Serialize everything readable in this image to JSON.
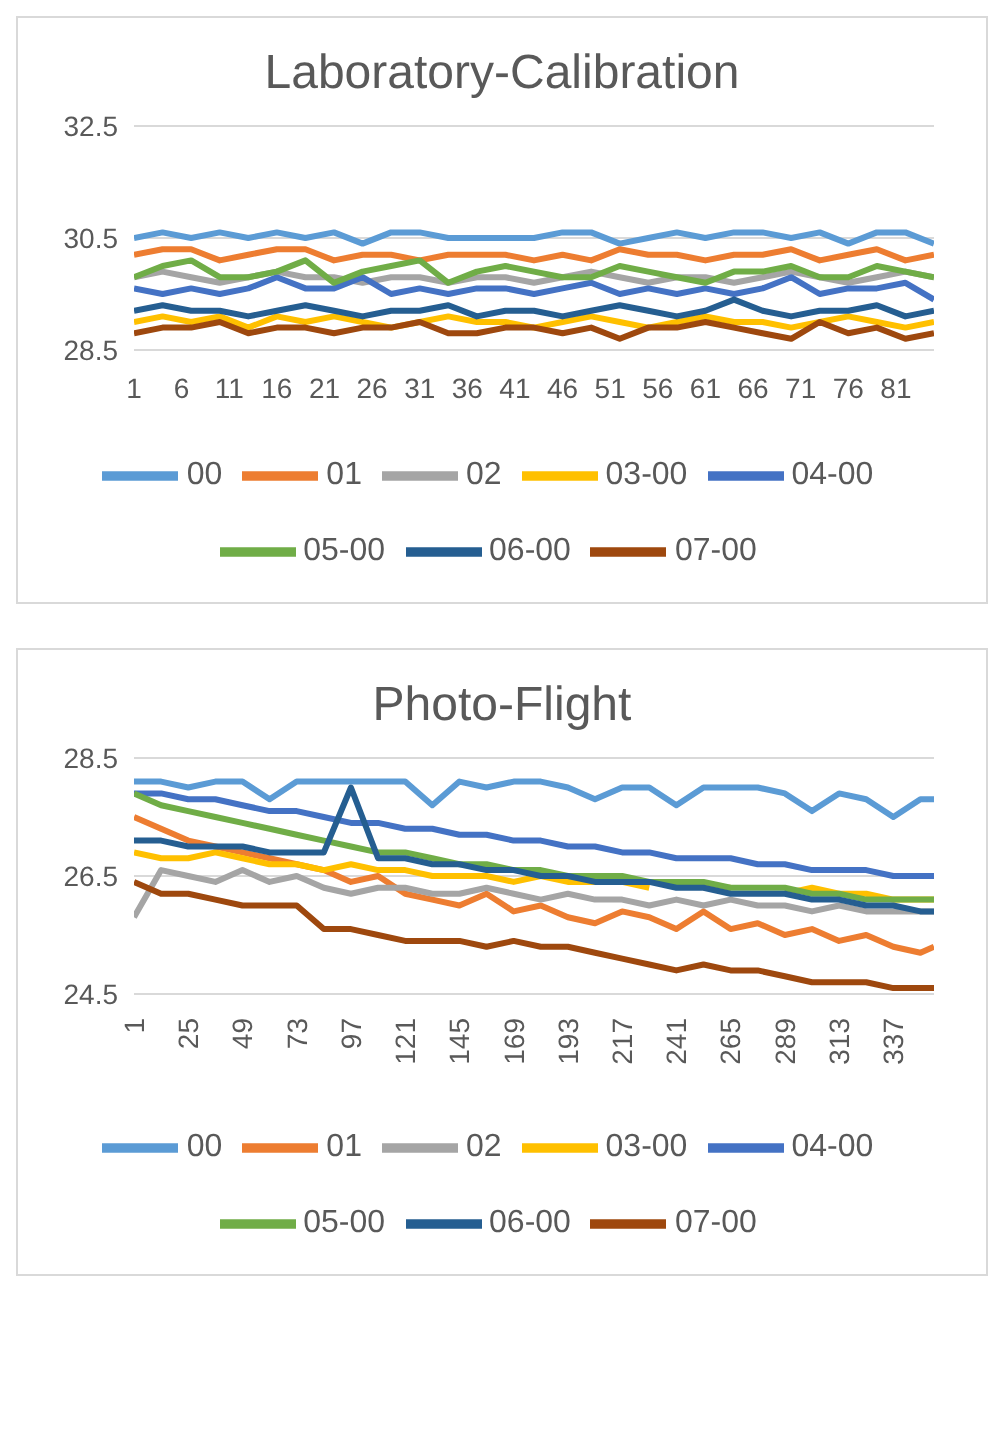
{
  "chart_data": [
    {
      "type": "line",
      "title": "Laboratory-Calibration",
      "x": [
        1,
        4,
        7,
        10,
        13,
        16,
        19,
        22,
        25,
        28,
        31,
        34,
        37,
        40,
        43,
        46,
        49,
        52,
        55,
        58,
        61,
        64,
        67,
        70,
        73,
        76,
        79,
        82,
        85
      ],
      "xlim": [
        1,
        85
      ],
      "xticks": [
        1,
        6,
        11,
        16,
        21,
        26,
        31,
        36,
        41,
        46,
        51,
        56,
        61,
        66,
        71,
        76,
        81
      ],
      "ylim": [
        28.5,
        32.5
      ],
      "yticks": [
        28.5,
        30.5,
        32.5
      ],
      "grid": "y",
      "legend": "bottom",
      "series": [
        {
          "name": "00",
          "color": "#5b9bd5",
          "values": [
            30.5,
            30.6,
            30.5,
            30.6,
            30.5,
            30.6,
            30.5,
            30.6,
            30.4,
            30.6,
            30.6,
            30.5,
            30.5,
            30.5,
            30.5,
            30.6,
            30.6,
            30.4,
            30.5,
            30.6,
            30.5,
            30.6,
            30.6,
            30.5,
            30.6,
            30.4,
            30.6,
            30.6,
            30.4
          ]
        },
        {
          "name": "01",
          "color": "#ed7d31",
          "values": [
            30.2,
            30.3,
            30.3,
            30.1,
            30.2,
            30.3,
            30.3,
            30.1,
            30.2,
            30.2,
            30.1,
            30.2,
            30.2,
            30.2,
            30.1,
            30.2,
            30.1,
            30.3,
            30.2,
            30.2,
            30.1,
            30.2,
            30.2,
            30.3,
            30.1,
            30.2,
            30.3,
            30.1,
            30.2
          ]
        },
        {
          "name": "02",
          "color": "#a5a5a5",
          "values": [
            29.8,
            29.9,
            29.8,
            29.7,
            29.8,
            29.9,
            29.8,
            29.8,
            29.7,
            29.8,
            29.8,
            29.7,
            29.8,
            29.8,
            29.7,
            29.8,
            29.9,
            29.8,
            29.7,
            29.8,
            29.8,
            29.7,
            29.8,
            29.9,
            29.8,
            29.7,
            29.8,
            29.9,
            29.8
          ]
        },
        {
          "name": "03-00",
          "color": "#ffc000",
          "values": [
            29.0,
            29.1,
            29.0,
            29.1,
            28.9,
            29.1,
            29.0,
            29.1,
            29.0,
            28.9,
            29.0,
            29.1,
            29.0,
            29.0,
            28.9,
            29.0,
            29.1,
            29.0,
            28.9,
            29.0,
            29.1,
            29.0,
            29.0,
            28.9,
            29.0,
            29.1,
            29.0,
            28.9,
            29.0
          ]
        },
        {
          "name": "04-00",
          "color": "#4472c4",
          "values": [
            29.6,
            29.5,
            29.6,
            29.5,
            29.6,
            29.8,
            29.6,
            29.6,
            29.8,
            29.5,
            29.6,
            29.5,
            29.6,
            29.6,
            29.5,
            29.6,
            29.7,
            29.5,
            29.6,
            29.5,
            29.6,
            29.5,
            29.6,
            29.8,
            29.5,
            29.6,
            29.6,
            29.7,
            29.4
          ]
        },
        {
          "name": "05-00",
          "color": "#70ad47",
          "values": [
            29.8,
            30.0,
            30.1,
            29.8,
            29.8,
            29.9,
            30.1,
            29.7,
            29.9,
            30.0,
            30.1,
            29.7,
            29.9,
            30.0,
            29.9,
            29.8,
            29.8,
            30.0,
            29.9,
            29.8,
            29.7,
            29.9,
            29.9,
            30.0,
            29.8,
            29.8,
            30.0,
            29.9,
            29.8
          ]
        },
        {
          "name": "06-00",
          "color": "#255e91",
          "values": [
            29.2,
            29.3,
            29.2,
            29.2,
            29.1,
            29.2,
            29.3,
            29.2,
            29.1,
            29.2,
            29.2,
            29.3,
            29.1,
            29.2,
            29.2,
            29.1,
            29.2,
            29.3,
            29.2,
            29.1,
            29.2,
            29.4,
            29.2,
            29.1,
            29.2,
            29.2,
            29.3,
            29.1,
            29.2
          ]
        },
        {
          "name": "07-00",
          "color": "#9e480e",
          "values": [
            28.8,
            28.9,
            28.9,
            29.0,
            28.8,
            28.9,
            28.9,
            28.8,
            28.9,
            28.9,
            29.0,
            28.8,
            28.8,
            28.9,
            28.9,
            28.8,
            28.9,
            28.7,
            28.9,
            28.9,
            29.0,
            28.9,
            28.8,
            28.7,
            29.0,
            28.8,
            28.9,
            28.7,
            28.8
          ]
        }
      ]
    },
    {
      "type": "line",
      "title": "Photo-Flight",
      "x": [
        1,
        13,
        25,
        37,
        49,
        61,
        73,
        85,
        97,
        109,
        121,
        133,
        145,
        157,
        169,
        181,
        193,
        205,
        217,
        229,
        241,
        253,
        265,
        277,
        289,
        301,
        313,
        325,
        337,
        349,
        355
      ],
      "xlim": [
        1,
        355
      ],
      "xticks": [
        1,
        25,
        49,
        73,
        97,
        121,
        145,
        169,
        193,
        217,
        241,
        265,
        289,
        313,
        337
      ],
      "ylim": [
        24.5,
        28.5
      ],
      "yticks": [
        24.5,
        26.5,
        28.5
      ],
      "grid": "y",
      "legend": "bottom",
      "series": [
        {
          "name": "00",
          "color": "#5b9bd5",
          "values": [
            28.1,
            28.1,
            28.0,
            28.1,
            28.1,
            27.8,
            28.1,
            28.1,
            28.1,
            28.1,
            28.1,
            27.7,
            28.1,
            28.0,
            28.1,
            28.1,
            28.0,
            27.8,
            28.0,
            28.0,
            27.7,
            28.0,
            28.0,
            28.0,
            27.9,
            27.6,
            27.9,
            27.8,
            27.5,
            27.8,
            27.8
          ]
        },
        {
          "name": "01",
          "color": "#ed7d31",
          "values": [
            27.5,
            27.3,
            27.1,
            27.0,
            26.9,
            26.8,
            26.7,
            26.6,
            26.4,
            26.5,
            26.2,
            26.1,
            26.0,
            26.2,
            25.9,
            26.0,
            25.8,
            25.7,
            25.9,
            25.8,
            25.6,
            25.9,
            25.6,
            25.7,
            25.5,
            25.6,
            25.4,
            25.5,
            25.3,
            25.2,
            25.3
          ]
        },
        {
          "name": "02",
          "color": "#a5a5a5",
          "values": [
            25.8,
            26.6,
            26.5,
            26.4,
            26.6,
            26.4,
            26.5,
            26.3,
            26.2,
            26.3,
            26.3,
            26.2,
            26.2,
            26.3,
            26.2,
            26.1,
            26.2,
            26.1,
            26.1,
            26.0,
            26.1,
            26.0,
            26.1,
            26.0,
            26.0,
            25.9,
            26.0,
            25.9,
            25.9,
            25.9,
            25.9
          ]
        },
        {
          "name": "03-00",
          "color": "#ffc000",
          "values": [
            26.9,
            26.8,
            26.8,
            26.9,
            26.8,
            26.7,
            26.7,
            26.6,
            26.7,
            26.6,
            26.6,
            26.5,
            26.5,
            26.5,
            26.4,
            26.5,
            26.4,
            26.4,
            26.4,
            26.3,
            null,
            26.3,
            26.3,
            null,
            26.2,
            26.3,
            26.2,
            26.2,
            26.1,
            26.1,
            26.1
          ]
        },
        {
          "name": "04-00",
          "color": "#4472c4",
          "values": [
            27.9,
            27.9,
            27.8,
            27.8,
            27.7,
            27.6,
            27.6,
            27.5,
            27.4,
            27.4,
            27.3,
            27.3,
            27.2,
            27.2,
            27.1,
            27.1,
            27.0,
            27.0,
            26.9,
            26.9,
            26.8,
            26.8,
            26.8,
            26.7,
            26.7,
            26.6,
            26.6,
            26.6,
            26.5,
            26.5,
            26.5
          ]
        },
        {
          "name": "05-00",
          "color": "#70ad47",
          "values": [
            27.9,
            27.7,
            27.6,
            27.5,
            27.4,
            27.3,
            27.2,
            27.1,
            27.0,
            26.9,
            26.9,
            26.8,
            26.7,
            26.7,
            26.6,
            26.6,
            26.5,
            26.5,
            26.5,
            26.4,
            26.4,
            26.4,
            26.3,
            26.3,
            26.3,
            26.2,
            26.2,
            26.1,
            26.1,
            26.1,
            26.1
          ]
        },
        {
          "name": "06-00",
          "color": "#255e91",
          "values": [
            27.1,
            27.1,
            27.0,
            27.0,
            27.0,
            26.9,
            26.9,
            26.9,
            28.0,
            26.8,
            26.8,
            26.7,
            26.7,
            26.6,
            26.6,
            26.5,
            26.5,
            26.4,
            26.4,
            26.4,
            26.3,
            26.3,
            26.2,
            26.2,
            26.2,
            26.1,
            26.1,
            26.0,
            26.0,
            25.9,
            25.9
          ]
        },
        {
          "name": "07-00",
          "color": "#9e480e",
          "values": [
            26.4,
            26.2,
            26.2,
            26.1,
            26.0,
            26.0,
            26.0,
            25.6,
            25.6,
            25.5,
            25.4,
            25.4,
            25.4,
            25.3,
            25.4,
            25.3,
            25.3,
            25.2,
            25.1,
            25.0,
            24.9,
            25.0,
            24.9,
            24.9,
            24.8,
            24.7,
            24.7,
            24.7,
            24.6,
            24.6,
            24.6
          ]
        }
      ]
    }
  ]
}
